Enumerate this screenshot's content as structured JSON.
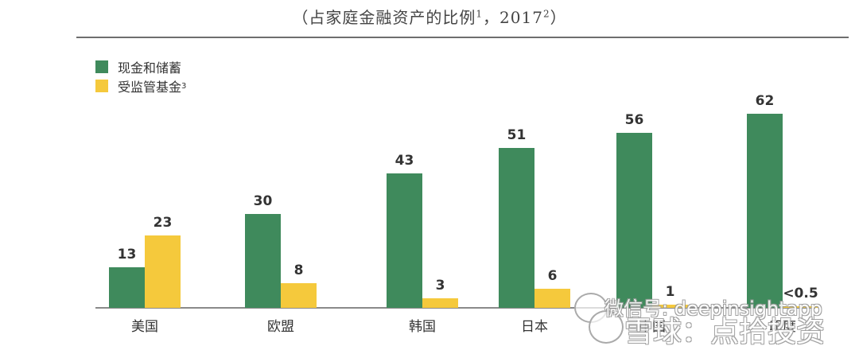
{
  "header": {
    "title_main": "（占家庭金融资产的比例",
    "title_sup1": "1",
    "title_mid": "，2017",
    "title_sup2": "2",
    "title_end": "）"
  },
  "legend": {
    "items": [
      {
        "label": "现金和储蓄",
        "sup": "",
        "color": "#3f8a5c"
      },
      {
        "label": "受监管基金",
        "sup": "3",
        "color": "#f5c93c"
      }
    ]
  },
  "watermark": {
    "line1": "微信号: deepinsightapp",
    "line2": "雪球：点拾投资"
  },
  "chart_data": {
    "type": "bar",
    "title": "（占家庭金融资产的比例1，20172）",
    "xlabel": "",
    "ylabel": "",
    "categories": [
      "美国",
      "欧盟",
      "韩国",
      "日本",
      "中国",
      "印度"
    ],
    "series": [
      {
        "name": "现金和储蓄",
        "color": "#3f8a5c",
        "values": [
          13,
          30,
          43,
          51,
          56,
          62
        ],
        "labels": [
          "13",
          "30",
          "43",
          "51",
          "56",
          "62"
        ]
      },
      {
        "name": "受监管基金3",
        "color": "#f5c93c",
        "values": [
          23,
          8,
          3,
          6,
          1,
          0.4
        ],
        "labels": [
          "23",
          "8",
          "3",
          "6",
          "1",
          "<0.5"
        ]
      }
    ],
    "ylim": [
      0,
      65
    ],
    "grid": false,
    "legend_position": "top-left",
    "notes": "Category labels for 中国 and 印度 are partially obscured by watermark"
  }
}
